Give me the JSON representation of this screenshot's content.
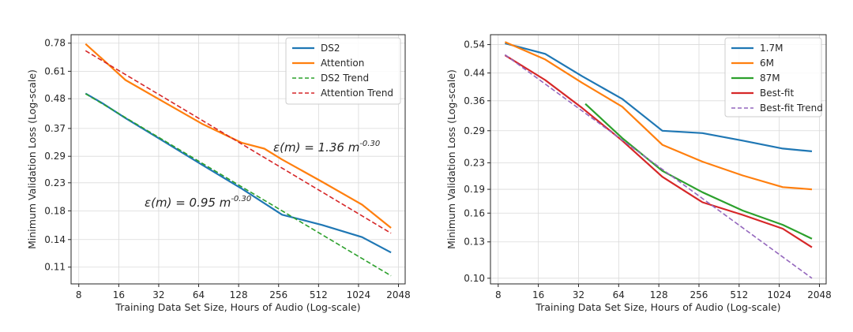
{
  "chart_data": [
    {
      "type": "line",
      "xlabel": "Training Data Set Size, Hours of Audio (Log-scale)",
      "ylabel": "Minimum Validation Loss (Log-scale)",
      "xscale": "log2",
      "yscale": "log",
      "xlim": [
        7.0,
        2300
      ],
      "ylim": [
        0.095,
        0.84
      ],
      "xticks": [
        8,
        16,
        32,
        64,
        128,
        256,
        512,
        1024,
        2048
      ],
      "xtick_labels": [
        "8",
        "16",
        "32",
        "64",
        "128",
        "256",
        "512",
        "1024",
        "2048"
      ],
      "yticks": [
        0.11,
        0.14,
        0.18,
        0.23,
        0.29,
        0.37,
        0.48,
        0.61,
        0.78
      ],
      "ytick_labels": [
        "0.11",
        "0.14",
        "0.18",
        "0.23",
        "0.29",
        "0.37",
        "0.48",
        "0.61",
        "0.78"
      ],
      "grid": true,
      "legend_position": "top-right",
      "series": [
        {
          "name": "DS2",
          "color": "#1f77b4",
          "dash": "solid",
          "x": [
            9,
            12,
            18,
            34,
            68,
            136,
            272,
            544,
            1088,
            1800
          ],
          "y": [
            0.502,
            0.462,
            0.405,
            0.333,
            0.269,
            0.218,
            0.174,
            0.159,
            0.143,
            0.125
          ]
        },
        {
          "name": "Attention",
          "color": "#ff7f0e",
          "dash": "solid",
          "x": [
            9,
            12,
            18,
            34,
            68,
            136,
            200,
            272,
            544,
            1088,
            1800
          ],
          "y": [
            0.775,
            0.68,
            0.565,
            0.47,
            0.385,
            0.326,
            0.31,
            0.282,
            0.232,
            0.19,
            0.155
          ]
        },
        {
          "name": "DS2 Trend",
          "color": "#2ca02c",
          "dash": "dashed",
          "x": [
            9,
            1800
          ],
          "y": [
            0.501,
            0.102
          ]
        },
        {
          "name": "Attention Trend",
          "color": "#d62728",
          "dash": "dashed",
          "x": [
            9,
            1800
          ],
          "y": [
            0.73,
            0.148
          ]
        }
      ],
      "annotations": [
        {
          "text": "ε(m) = 1.36 m",
          "exponent": "-0.30",
          "x": 280,
          "y": 0.305
        },
        {
          "text": "ε(m) = 0.95 m",
          "exponent": "-0.30",
          "x": 24,
          "y": 0.19
        }
      ]
    },
    {
      "type": "line",
      "xlabel": "Training Data Set Size, Hours of Audio (Log-scale)",
      "ylabel": "Minimum Validation Loss (Log-scale)",
      "xscale": "log2",
      "yscale": "log",
      "xlim": [
        7.0,
        2300
      ],
      "ylim": [
        0.096,
        0.58
      ],
      "xticks": [
        8,
        16,
        32,
        64,
        128,
        256,
        512,
        1024,
        2048
      ],
      "xtick_labels": [
        "8",
        "16",
        "32",
        "64",
        "128",
        "256",
        "512",
        "1024",
        "2048"
      ],
      "yticks": [
        0.1,
        0.13,
        0.16,
        0.19,
        0.23,
        0.29,
        0.36,
        0.44,
        0.54
      ],
      "ytick_labels": [
        "0.10",
        "0.13",
        "0.16",
        "0.19",
        "0.23",
        "0.29",
        "0.36",
        "0.44",
        "0.54"
      ],
      "grid": true,
      "legend_position": "top-right",
      "series": [
        {
          "name": "1.7M",
          "color": "#1f77b4",
          "dash": "solid",
          "x": [
            9,
            18,
            34,
            68,
            136,
            272,
            544,
            1088,
            1800
          ],
          "y": [
            0.545,
            0.505,
            0.43,
            0.365,
            0.29,
            0.285,
            0.27,
            0.255,
            0.25
          ]
        },
        {
          "name": "6M",
          "color": "#ff7f0e",
          "dash": "solid",
          "x": [
            9,
            18,
            34,
            68,
            136,
            272,
            544,
            1088,
            1800
          ],
          "y": [
            0.55,
            0.485,
            0.41,
            0.345,
            0.262,
            0.232,
            0.21,
            0.193,
            0.19
          ]
        },
        {
          "name": "87M",
          "color": "#2ca02c",
          "dash": "solid",
          "x": [
            36,
            68,
            136,
            272,
            544,
            1088,
            1800
          ],
          "y": [
            0.352,
            0.275,
            0.217,
            0.186,
            0.163,
            0.147,
            0.133
          ]
        },
        {
          "name": "Best-fit",
          "color": "#d62728",
          "dash": "solid",
          "x": [
            9,
            18,
            34,
            68,
            136,
            272,
            544,
            1088,
            1800
          ],
          "y": [
            0.5,
            0.418,
            0.342,
            0.27,
            0.208,
            0.173,
            0.158,
            0.143,
            0.125
          ]
        },
        {
          "name": "Best-fit Trend",
          "color": "#9467bd",
          "dash": "dashed",
          "x": [
            9,
            1800
          ],
          "y": [
            0.502,
            0.1
          ]
        }
      ]
    }
  ]
}
